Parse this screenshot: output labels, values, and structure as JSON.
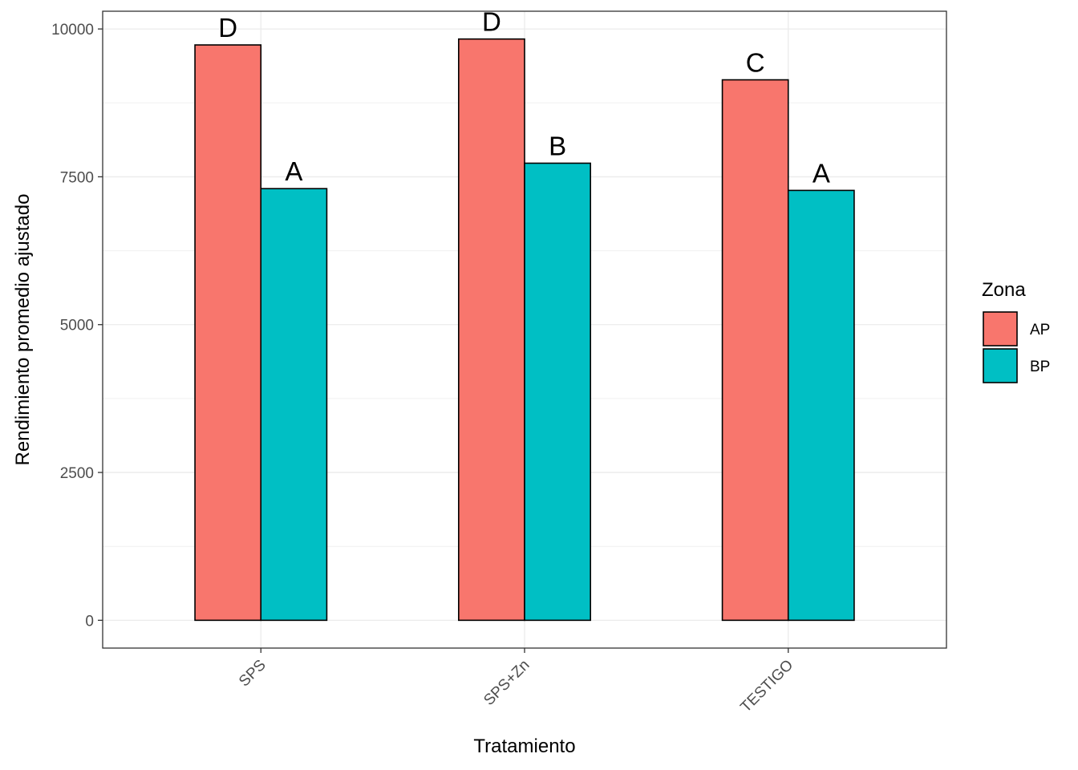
{
  "chart_data": {
    "type": "bar",
    "categories": [
      "SPS",
      "SPS+Zn",
      "TESTIGO"
    ],
    "series": [
      {
        "name": "AP",
        "values": [
          9730,
          9830,
          9140
        ],
        "labels": [
          "D",
          "D",
          "C"
        ]
      },
      {
        "name": "BP",
        "values": [
          7300,
          7730,
          7270
        ],
        "labels": [
          "A",
          "B",
          "A"
        ]
      }
    ],
    "xlabel": "Tratamiento",
    "ylabel": "Rendimiento promedio ajustado",
    "ylim": [
      -470,
      10300
    ],
    "yticks": [
      0,
      2500,
      5000,
      7500,
      10000
    ],
    "grid": true,
    "legend": {
      "title": "Zona",
      "position": "right"
    },
    "colors": {
      "AP": "#F8766D",
      "BP": "#00BFC4"
    }
  }
}
